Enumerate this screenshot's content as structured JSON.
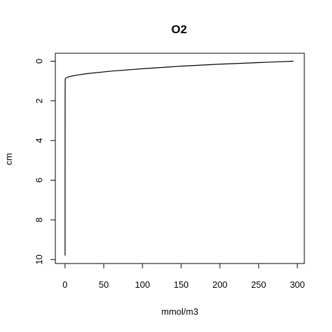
{
  "chart_data": {
    "type": "line",
    "title": "O2",
    "xlabel": "mmol/m3",
    "ylabel": "cm",
    "xlim": [
      -12.5,
      309
    ],
    "ylim": [
      10.2,
      -0.4
    ],
    "y_inverted": true,
    "grid": false,
    "x_ticks": [
      0,
      50,
      100,
      150,
      200,
      250,
      300
    ],
    "y_ticks": [
      0,
      2,
      4,
      6,
      8,
      10
    ],
    "series": [
      {
        "color": "#000000",
        "x": [
          295,
          250,
          200,
          150,
          100,
          60,
          30,
          15,
          8,
          4,
          2,
          1.5,
          1,
          0.5,
          0.3,
          0.2,
          0.1,
          0.05
        ],
        "y": [
          0.0,
          0.07,
          0.15,
          0.25,
          0.38,
          0.5,
          0.62,
          0.7,
          0.76,
          0.8,
          0.83,
          0.84,
          0.86,
          0.88,
          0.9,
          0.93,
          2.0,
          9.8
        ]
      }
    ]
  }
}
